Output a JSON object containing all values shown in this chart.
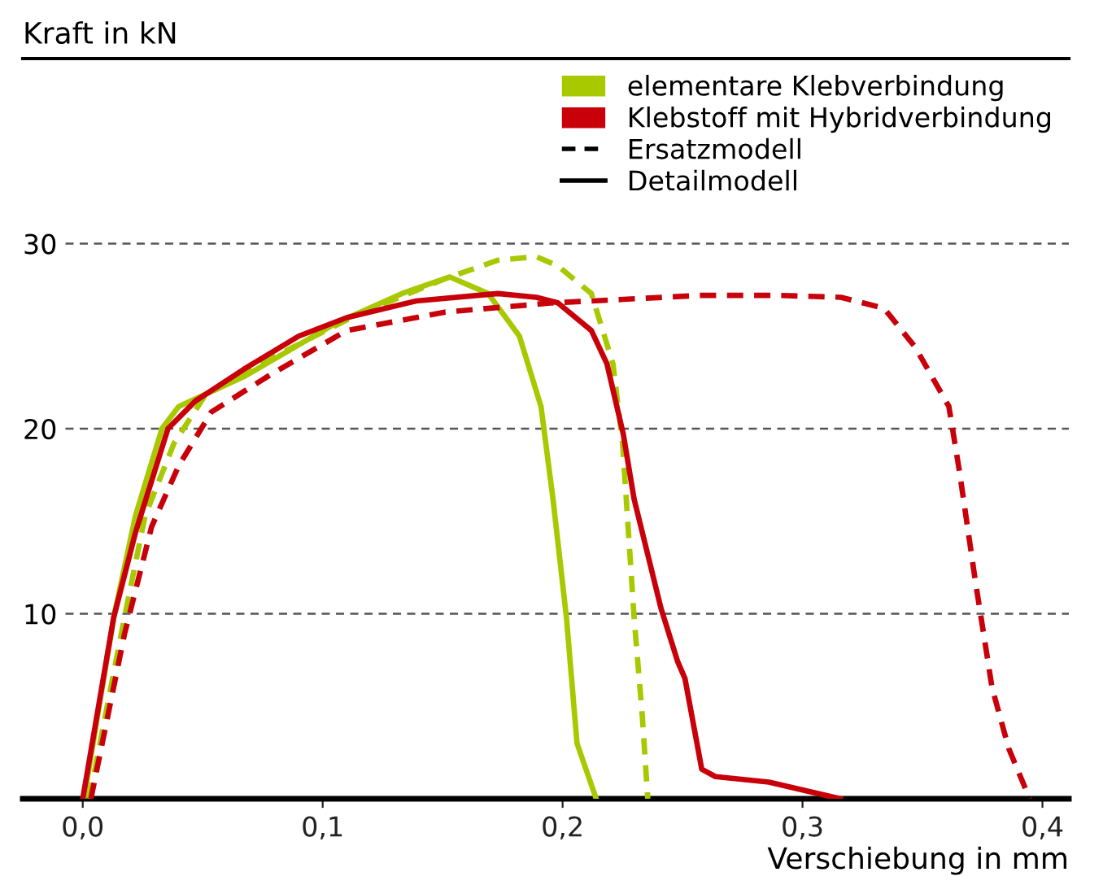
{
  "chart_data": {
    "type": "line",
    "ylabel": "Kraft in kN",
    "xlabel": "Verschiebung in mm",
    "annotations": [
      "elementare Klebverbindung",
      "Klebstoff mit Hybridverbindung",
      "Ersatzmodell",
      "Detailmodell"
    ],
    "xlim": [
      -0.025,
      0.411
    ],
    "ylim": [
      0,
      40
    ],
    "xticks": [
      {
        "value": 0,
        "label": "0,0"
      },
      {
        "value": 0.1,
        "label": "0,1"
      },
      {
        "value": 0.2,
        "label": "0,2"
      },
      {
        "value": 0.3,
        "label": "0,3"
      },
      {
        "value": 0.4,
        "label": "0,4"
      }
    ],
    "yticks": [
      10,
      20,
      30
    ],
    "grid": "y",
    "marker": "none",
    "series": [
      {
        "color": "#a8c800",
        "line_style": "dashed",
        "x": [
          0.0027,
          0.0174,
          0.026,
          0.038,
          0.051,
          0.083,
          0.115,
          0.151,
          0.173,
          0.189,
          0.198,
          0.212,
          0.221,
          0.225,
          0.2298,
          0.2332,
          0.2355
        ],
        "values": [
          0,
          9.8,
          15.3,
          19.2,
          21.8,
          24.1,
          26.2,
          28.1,
          29.1,
          29.3,
          28.8,
          27.3,
          23.5,
          19.2,
          9.8,
          4.5,
          0
        ]
      },
      {
        "color": "#a8c800",
        "line_style": "solid",
        "x": [
          0.0005,
          0.0129,
          0.022,
          0.033,
          0.04,
          0.067,
          0.1055,
          0.133,
          0.153,
          0.169,
          0.182,
          0.191,
          0.196,
          0.2016,
          0.206,
          0.214
        ],
        "values": [
          0,
          9.8,
          15.3,
          20.0,
          21.2,
          22.8,
          25.7,
          27.3,
          28.2,
          27.3,
          25.0,
          21.2,
          16.2,
          9.8,
          3.0,
          0
        ]
      },
      {
        "color": "#c8000a",
        "line_style": "dashed",
        "x": [
          0.0034,
          0.0174,
          0.0287,
          0.04,
          0.0536,
          0.078,
          0.11,
          0.151,
          0.196,
          0.212,
          0.257,
          0.291,
          0.316,
          0.334,
          0.347,
          0.361,
          0.3654,
          0.372,
          0.379,
          0.386,
          0.3947
        ],
        "values": [
          0,
          8.9,
          14.7,
          18.0,
          20.9,
          22.9,
          25.3,
          26.3,
          26.8,
          26.9,
          27.2,
          27.2,
          27.1,
          26.5,
          24.4,
          21.2,
          17.7,
          11.8,
          6.0,
          2.7,
          0
        ]
      },
      {
        "color": "#c8000a",
        "line_style": "solid",
        "x": [
          0,
          0.0129,
          0.022,
          0.0355,
          0.047,
          0.067,
          0.09,
          0.11,
          0.139,
          0.173,
          0.189,
          0.198,
          0.212,
          0.2185,
          0.2253,
          0.2298,
          0.241,
          0.248,
          0.251,
          0.258,
          0.2637,
          0.286,
          0.3157
        ],
        "values": [
          0,
          9.8,
          14.4,
          20.0,
          21.5,
          23.2,
          25.0,
          26.0,
          26.9,
          27.3,
          27.1,
          26.8,
          25.3,
          23.5,
          19.7,
          16.2,
          10.3,
          7.4,
          6.5,
          1.6,
          1.2,
          0.9,
          0
        ]
      }
    ]
  }
}
